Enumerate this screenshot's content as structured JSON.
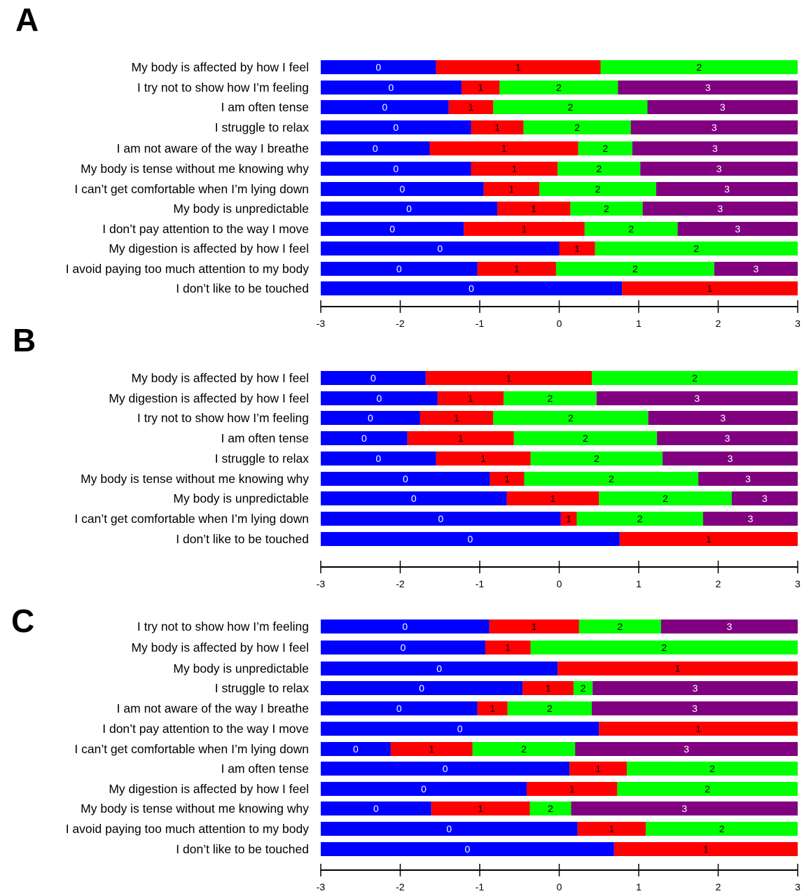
{
  "colors": {
    "0": "#0000ff",
    "1": "#ff0000",
    "2": "#00ff00",
    "3": "#800080"
  },
  "chart_data": [
    {
      "type": "bar",
      "panel_label": "A",
      "xlim": [
        -3,
        3
      ],
      "ticks": [
        -3,
        -2,
        -1,
        0,
        1,
        2,
        3
      ],
      "rows": [
        {
          "label": "My body is affected by how I feel",
          "bounds": [
            -3,
            -1.55,
            0.52,
            3
          ]
        },
        {
          "label": "I try not to show how I’m feeling",
          "bounds": [
            -3,
            -1.23,
            -0.75,
            0.74,
            3
          ]
        },
        {
          "label": "I am often tense",
          "bounds": [
            -3,
            -1.39,
            -0.83,
            1.11,
            3
          ]
        },
        {
          "label": "I struggle to relax",
          "bounds": [
            -3,
            -1.11,
            -0.45,
            0.9,
            3
          ]
        },
        {
          "label": "I am not aware of the way I breathe",
          "bounds": [
            -3,
            -1.63,
            0.24,
            0.92,
            3
          ]
        },
        {
          "label": "My body is tense without me knowing why",
          "bounds": [
            -3,
            -1.11,
            -0.02,
            1.02,
            3
          ]
        },
        {
          "label": "I can’t get comfortable when I’m lying down",
          "bounds": [
            -3,
            -0.95,
            -0.25,
            1.22,
            3
          ]
        },
        {
          "label": "My body is unpredictable",
          "bounds": [
            -3,
            -0.78,
            0.14,
            1.05,
            3
          ]
        },
        {
          "label": "I don’t pay attention to the way I move",
          "bounds": [
            -3,
            -1.2,
            0.32,
            1.49,
            3
          ]
        },
        {
          "label": "My digestion is affected by how I feel",
          "bounds": [
            -3,
            0,
            0.45,
            3
          ]
        },
        {
          "label": "I avoid paying too much attention to my body",
          "bounds": [
            -3,
            -1.03,
            -0.04,
            1.95,
            3
          ]
        },
        {
          "label": "I don’t like to be touched",
          "bounds": [
            -3,
            0.79,
            3
          ]
        }
      ]
    },
    {
      "type": "bar",
      "panel_label": "B",
      "xlim": [
        -3,
        3
      ],
      "ticks": [
        -3,
        -2,
        -1,
        0,
        1,
        2,
        3
      ],
      "rows": [
        {
          "label": "My body is affected by how I feel",
          "bounds": [
            -3,
            -1.68,
            0.41,
            3
          ]
        },
        {
          "label": "My digestion is affected by how I feel",
          "bounds": [
            -3,
            -1.53,
            -0.7,
            0.47,
            3
          ]
        },
        {
          "label": "I try not to show how I’m feeling",
          "bounds": [
            -3,
            -1.75,
            -0.83,
            1.12,
            3
          ]
        },
        {
          "label": "I am often tense",
          "bounds": [
            -3,
            -1.91,
            -0.57,
            1.23,
            3
          ]
        },
        {
          "label": "I struggle to relax",
          "bounds": [
            -3,
            -1.55,
            -0.36,
            1.3,
            3
          ]
        },
        {
          "label": "My  body is tense without me knowing why",
          "bounds": [
            -3,
            -0.87,
            -0.44,
            1.75,
            3
          ]
        },
        {
          "label": "My body is unpredictable",
          "bounds": [
            -3,
            -0.66,
            0.5,
            2.17,
            3
          ]
        },
        {
          "label": "I can’t get comfortable when I’m lying down",
          "bounds": [
            -3,
            0.02,
            0.22,
            1.81,
            3
          ]
        },
        {
          "label": "I don’t like to be touched",
          "bounds": [
            -3,
            0.76,
            3
          ]
        }
      ]
    },
    {
      "type": "bar",
      "panel_label": "C",
      "xlim": [
        -3,
        3
      ],
      "ticks": [
        -3,
        -2,
        -1,
        0,
        1,
        2,
        3
      ],
      "rows": [
        {
          "label": "I try not to show how I’m feeling",
          "bounds": [
            -3,
            -0.88,
            0.25,
            1.28,
            3
          ]
        },
        {
          "label": "My body is affected by how I feel",
          "bounds": [
            -3,
            -0.93,
            -0.36,
            3
          ]
        },
        {
          "label": "My body is unpredictable",
          "bounds": [
            -3,
            -0.02,
            3
          ]
        },
        {
          "label": "I struggle to relax",
          "bounds": [
            -3,
            -0.46,
            0.18,
            0.42,
            3
          ]
        },
        {
          "label": "I am not aware of the way I breathe",
          "bounds": [
            -3,
            -1.03,
            -0.65,
            0.41,
            3
          ]
        },
        {
          "label": "I don’t pay attention to the way I move",
          "bounds": [
            -3,
            0.5,
            3
          ]
        },
        {
          "label": "I can’t get comfortable when I’m lying down",
          "bounds": [
            -3,
            -2.12,
            -1.09,
            0.2,
            3
          ]
        },
        {
          "label": "I am often tense",
          "bounds": [
            -3,
            0.13,
            0.85,
            3
          ]
        },
        {
          "label": "My digestion is affected by how I feel",
          "bounds": [
            -3,
            -0.41,
            0.73,
            3
          ]
        },
        {
          "label": "My body is tense without me knowing why",
          "bounds": [
            -3,
            -1.61,
            -0.37,
            0.15,
            3
          ]
        },
        {
          "label": "I avoid paying too much attention to my body",
          "bounds": [
            -3,
            0.23,
            1.09,
            3
          ]
        },
        {
          "label": "I don’t like to be touched",
          "bounds": [
            -3,
            0.69,
            3
          ]
        }
      ]
    }
  ]
}
